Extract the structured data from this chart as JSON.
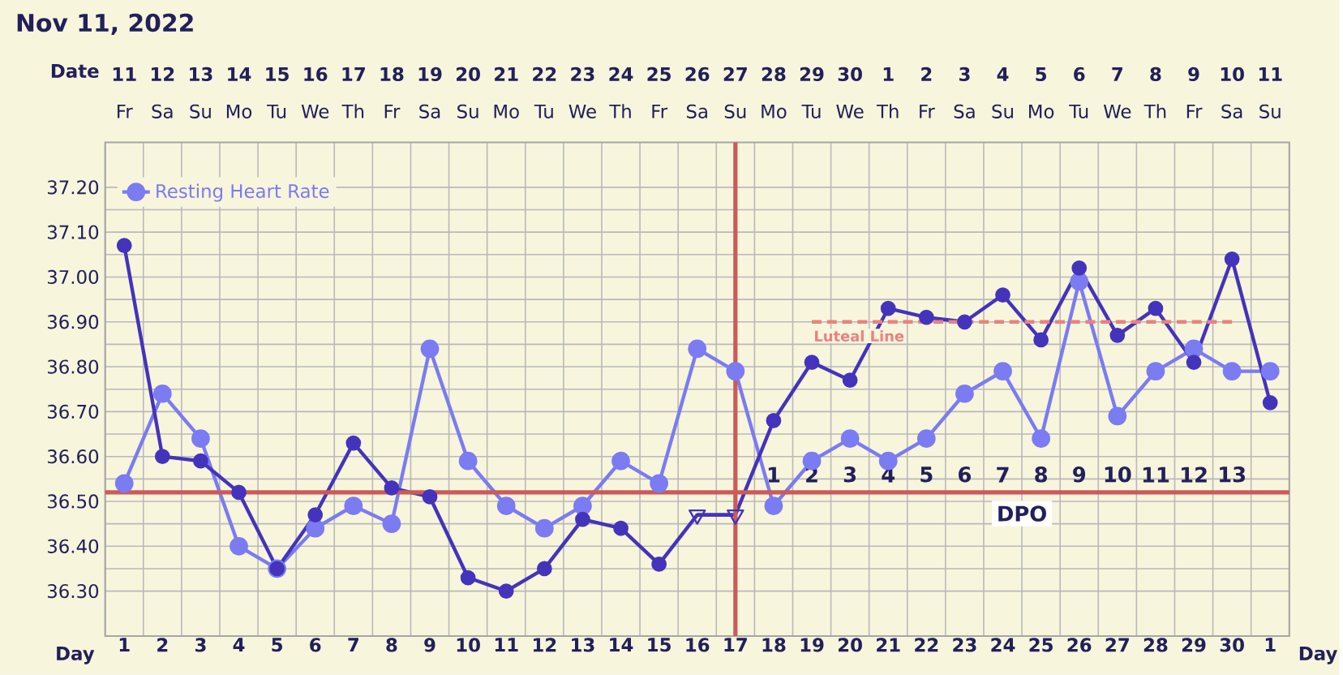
{
  "chart_data": {
    "type": "line",
    "title": "Nov 11, 2022",
    "xlabel": "Day",
    "categories": [
      "1",
      "2",
      "3",
      "4",
      "5",
      "6",
      "7",
      "8",
      "9",
      "10",
      "11",
      "12",
      "13",
      "14",
      "15",
      "16",
      "17",
      "18",
      "19",
      "20",
      "21",
      "22",
      "23",
      "24",
      "25",
      "26",
      "27",
      "28",
      "29",
      "30",
      "1"
    ],
    "ylim": [
      36.2,
      37.3
    ],
    "yticks": [
      {
        "value": 36.3,
        "label": "36.30"
      },
      {
        "value": 36.4,
        "label": "36.40"
      },
      {
        "value": 36.5,
        "label": "36.50"
      },
      {
        "value": 36.6,
        "label": "36.60"
      },
      {
        "value": 36.7,
        "label": "36.70"
      },
      {
        "value": 36.8,
        "label": "36.80"
      },
      {
        "value": 36.9,
        "label": "36.90"
      },
      {
        "value": 37.0,
        "label": "37.00"
      },
      {
        "value": 37.1,
        "label": "37.10"
      },
      {
        "value": 37.2,
        "label": "37.20"
      }
    ],
    "series": [
      {
        "name": "Resting Heart Rate",
        "color": "#7b7bf2",
        "marker": "circle",
        "values": [
          36.54,
          36.74,
          36.64,
          36.4,
          36.35,
          36.44,
          36.49,
          36.45,
          36.84,
          36.59,
          36.49,
          36.44,
          36.49,
          36.59,
          36.54,
          36.84,
          36.79,
          36.49,
          36.59,
          36.64,
          36.59,
          36.64,
          36.74,
          36.79,
          36.64,
          36.99,
          36.69,
          36.79,
          36.84,
          36.79,
          36.79
        ]
      },
      {
        "color": "#4433bb",
        "marker": "circle",
        "values": [
          37.07,
          36.6,
          36.59,
          36.52,
          36.35,
          36.47,
          36.63,
          36.53,
          36.51,
          36.33,
          36.3,
          36.35,
          36.46,
          36.44,
          36.36,
          36.47,
          36.47,
          36.68,
          36.81,
          36.77,
          36.93,
          36.91,
          36.9,
          36.96,
          36.86,
          37.02,
          36.87,
          36.93,
          36.81,
          37.04,
          36.72
        ]
      },
      {
        "color": "#4433bb",
        "marker": "triangle",
        "values": [
          null,
          null,
          null,
          null,
          null,
          null,
          null,
          null,
          null,
          null,
          null,
          null,
          null,
          null,
          null,
          36.47,
          36.47,
          null,
          null,
          null,
          null,
          null,
          null,
          null,
          null,
          null,
          null,
          null,
          null,
          null,
          null
        ]
      },
      {
        "name": "Luteal Line",
        "color": "#ec8080",
        "marker": "none",
        "line_style": "dashed",
        "values": [
          null,
          null,
          null,
          null,
          null,
          null,
          null,
          null,
          null,
          null,
          null,
          null,
          null,
          null,
          null,
          null,
          null,
          null,
          36.9,
          36.9,
          36.9,
          36.9,
          36.9,
          36.9,
          36.9,
          36.9,
          36.9,
          36.9,
          36.9,
          36.9,
          null
        ]
      }
    ],
    "ref_lines": [
      {
        "axis": "y",
        "value": 36.52,
        "color": "#cc5a5a"
      },
      {
        "axis": "x",
        "value": "17",
        "color": "#cc5a5a"
      }
    ],
    "annotations": [
      "Date",
      "11",
      "12",
      "13",
      "14",
      "15",
      "16",
      "17",
      "18",
      "19",
      "20",
      "21",
      "22",
      "23",
      "24",
      "25",
      "26",
      "27",
      "28",
      "29",
      "30",
      "1",
      "2",
      "3",
      "4",
      "5",
      "6",
      "7",
      "8",
      "9",
      "10",
      "11",
      "Fr",
      "Sa",
      "Su",
      "Mo",
      "Tu",
      "We",
      "Th",
      "Fr",
      "Sa",
      "Su",
      "Mo",
      "Tu",
      "We",
      "Th",
      "Fr",
      "Sa",
      "Su",
      "Mo",
      "Tu",
      "We",
      "Th",
      "Fr",
      "Sa",
      "Su",
      "Mo",
      "Tu",
      "We",
      "Th",
      "Fr",
      "Sa",
      "Su",
      "1",
      "2",
      "3",
      "4",
      "5",
      "6",
      "7",
      "8",
      "9",
      "10",
      "11",
      "12",
      "13",
      "DPO"
    ],
    "grid": true,
    "legend": "top left"
  }
}
